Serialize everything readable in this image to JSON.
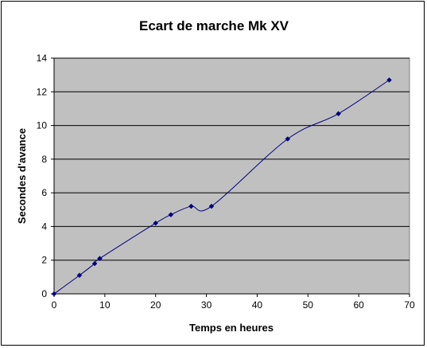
{
  "chart_data": {
    "type": "line",
    "title": "Ecart de marche Mk XV",
    "xlabel": "Temps en heures",
    "ylabel": "Secondes d'avance",
    "xlim": [
      0,
      70
    ],
    "ylim": [
      0,
      14
    ],
    "xticks": [
      0,
      10,
      20,
      30,
      40,
      50,
      60,
      70
    ],
    "yticks": [
      0,
      2,
      4,
      6,
      8,
      10,
      12,
      14
    ],
    "grid": "horizontal",
    "legend": "none",
    "colors": {
      "plot_background": "#c0c0c0",
      "series": "#000080",
      "gridline": "#000000"
    },
    "series": [
      {
        "x": [
          0,
          5,
          8,
          9,
          20,
          23,
          27,
          31,
          46,
          56,
          66
        ],
        "y": [
          0,
          1.1,
          1.8,
          2.1,
          4.2,
          4.7,
          5.2,
          5.2,
          9.2,
          10.7,
          12.7
        ]
      }
    ]
  }
}
